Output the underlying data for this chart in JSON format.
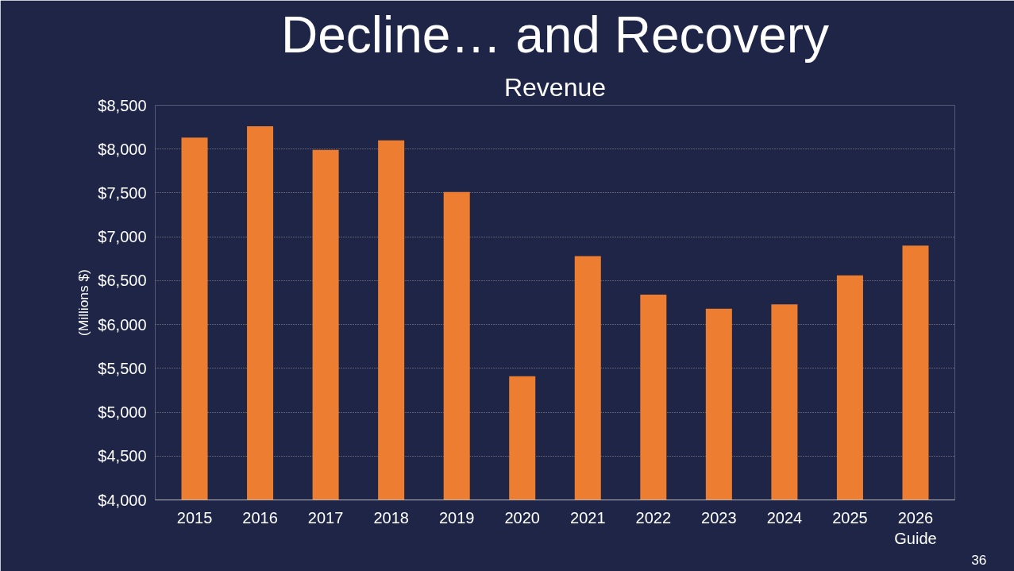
{
  "chart_data": {
    "type": "bar",
    "title": "Decline… and Recovery",
    "subtitle": "Revenue",
    "ylabel": "(Millions $)",
    "categories": [
      "2015",
      "2016",
      "2017",
      "2018",
      "2019",
      "2020",
      "2021",
      "2022",
      "2023",
      "2024",
      "2025",
      "2026\nGuide"
    ],
    "values": [
      8130,
      8260,
      7990,
      8100,
      7510,
      5410,
      6780,
      6340,
      6180,
      6230,
      6560,
      6900
    ],
    "color": "#ed7d31",
    "ylim": [
      4000,
      8500
    ],
    "yticks": [
      {
        "value": 4000,
        "label": "$4,000"
      },
      {
        "value": 4500,
        "label": "$4,500"
      },
      {
        "value": 5000,
        "label": "$5,000"
      },
      {
        "value": 5500,
        "label": "$5,500"
      },
      {
        "value": 6000,
        "label": "$6,000"
      },
      {
        "value": 6500,
        "label": "$6,500"
      },
      {
        "value": 7000,
        "label": "$7,000"
      },
      {
        "value": 7500,
        "label": "$7,500"
      },
      {
        "value": 8000,
        "label": "$8,000"
      },
      {
        "value": 8500,
        "label": "$8,500"
      }
    ],
    "grid": "y",
    "annotations": [
      "36"
    ]
  }
}
